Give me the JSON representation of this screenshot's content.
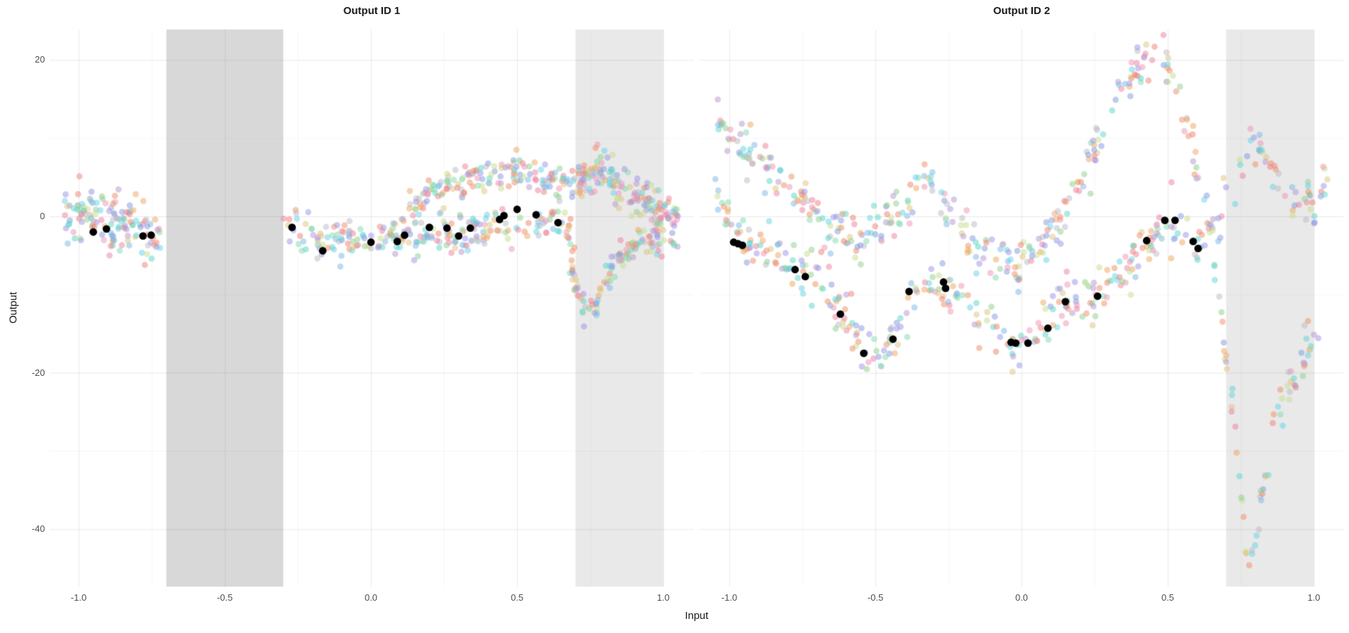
{
  "figure": {
    "xlabel": "Input",
    "ylabel": "Output"
  },
  "chart_data": {
    "type": "scatter",
    "xlabel": "Input",
    "ylabel": "Output",
    "grid": "on",
    "legend": "none",
    "x_ticks": [
      {
        "v": -1.0,
        "label": "-1.0"
      },
      {
        "v": -0.5,
        "label": "-0.5"
      },
      {
        "v": 0.0,
        "label": "0.0"
      },
      {
        "v": 0.5,
        "label": "0.5"
      },
      {
        "v": 1.0,
        "label": "1.0"
      }
    ],
    "x_minor_ticks": [
      -0.75,
      -0.25,
      0.25,
      0.75
    ],
    "y_ticks": [
      {
        "v": 20,
        "label": "20"
      },
      {
        "v": 0,
        "label": "0"
      },
      {
        "v": -20,
        "label": "-20"
      },
      {
        "v": -40,
        "label": "-40"
      }
    ],
    "y_minor_ticks": [
      10,
      -10,
      -30
    ],
    "xlim": [
      -1.1,
      1.1
    ],
    "ylim": [
      -47.3,
      23.9
    ],
    "facets": [
      {
        "title": "Output ID 1",
        "shaded_x_regions": [
          {
            "from": -0.7,
            "to": -0.3,
            "shade": "dark"
          },
          {
            "from": 0.7,
            "to": 1.0,
            "shade": "light"
          }
        ],
        "sample_point_clouds": [
          {
            "name": "left-band",
            "n_points": 130,
            "y_jitter": 2.0,
            "nodes": [
              [
                -1.05,
                1.2
              ],
              [
                -0.95,
                0.3
              ],
              [
                -0.88,
                -0.6
              ],
              [
                -0.8,
                -1.6
              ],
              [
                -0.72,
                -3.2
              ]
            ]
          },
          {
            "name": "mid-lower",
            "n_points": 240,
            "y_jitter": 1.3,
            "nodes": [
              [
                -0.3,
                -0.9
              ],
              [
                -0.22,
                -2.2
              ],
              [
                -0.16,
                -3.6
              ],
              [
                -0.08,
                -3.2
              ],
              [
                0.0,
                -3.1
              ],
              [
                0.08,
                -2.9
              ],
              [
                0.15,
                -2.6
              ],
              [
                0.22,
                -1.9
              ],
              [
                0.3,
                -2.7
              ],
              [
                0.38,
                -2.0
              ],
              [
                0.45,
                -1.3
              ],
              [
                0.52,
                -1.1
              ],
              [
                0.58,
                -0.7
              ],
              [
                0.64,
                -1.4
              ],
              [
                0.7,
                -2.0
              ]
            ]
          },
          {
            "name": "mid-upper",
            "n_points": 150,
            "y_jitter": 1.1,
            "nodes": [
              [
                0.13,
                0.8
              ],
              [
                0.2,
                2.6
              ],
              [
                0.28,
                4.2
              ],
              [
                0.36,
                5.0
              ],
              [
                0.45,
                5.2
              ],
              [
                0.52,
                5.6
              ],
              [
                0.58,
                5.0
              ],
              [
                0.62,
                3.6
              ],
              [
                0.66,
                4.6
              ],
              [
                0.7,
                4.2
              ]
            ]
          },
          {
            "name": "right-arc",
            "n_points": 150,
            "y_jitter": 1.3,
            "nodes": [
              [
                0.7,
                3.8
              ],
              [
                0.74,
                5.4
              ],
              [
                0.78,
                6.3
              ],
              [
                0.82,
                5.0
              ],
              [
                0.86,
                3.4
              ],
              [
                0.9,
                2.6
              ],
              [
                0.95,
                1.6
              ],
              [
                1.0,
                0.4
              ],
              [
                1.05,
                0.8
              ]
            ]
          },
          {
            "name": "right-v",
            "n_points": 110,
            "y_jitter": 1.0,
            "nodes": [
              [
                0.68,
                -5.5
              ],
              [
                0.71,
                -9.5
              ],
              [
                0.74,
                -13.2
              ],
              [
                0.77,
                -11.5
              ],
              [
                0.81,
                -8.0
              ],
              [
                0.85,
                -5.5
              ],
              [
                0.9,
                -3.4
              ],
              [
                0.95,
                -2.6
              ],
              [
                1.0,
                -3.0
              ],
              [
                1.05,
                -2.6
              ]
            ]
          }
        ],
        "observed_points": [
          [
            -0.95,
            -2.0
          ],
          [
            -0.905,
            -1.6
          ],
          [
            -0.78,
            -2.5
          ],
          [
            -0.752,
            -2.4
          ],
          [
            -0.27,
            -1.4
          ],
          [
            -0.165,
            -4.4
          ],
          [
            0.0,
            -3.3
          ],
          [
            0.09,
            -3.2
          ],
          [
            0.115,
            -2.4
          ],
          [
            0.2,
            -1.4
          ],
          [
            0.26,
            -1.5
          ],
          [
            0.3,
            -2.5
          ],
          [
            0.34,
            -1.5
          ],
          [
            0.44,
            -0.4
          ],
          [
            0.455,
            0.1
          ],
          [
            0.5,
            0.9
          ],
          [
            0.565,
            0.2
          ],
          [
            0.64,
            -0.8
          ]
        ]
      },
      {
        "title": "Output ID 2",
        "shaded_x_regions": [
          {
            "from": 0.7,
            "to": 1.0,
            "shade": "light"
          }
        ],
        "sample_point_clouds": [
          {
            "name": "upper-stream",
            "n_points": 400,
            "y_jitter": 1.6,
            "nodes": [
              [
                -1.05,
                12.0
              ],
              [
                -0.97,
                9.5
              ],
              [
                -0.9,
                7.0
              ],
              [
                -0.82,
                4.5
              ],
              [
                -0.75,
                2.0
              ],
              [
                -0.68,
                -0.5
              ],
              [
                -0.6,
                -2.0
              ],
              [
                -0.54,
                -3.0
              ],
              [
                -0.48,
                -1.8
              ],
              [
                -0.42,
                0.8
              ],
              [
                -0.36,
                3.5
              ],
              [
                -0.32,
                4.3
              ],
              [
                -0.27,
                1.5
              ],
              [
                -0.22,
                -1.5
              ],
              [
                -0.17,
                -4.0
              ],
              [
                -0.1,
                -5.3
              ],
              [
                -0.03,
                -5.5
              ],
              [
                0.04,
                -4.6
              ],
              [
                0.1,
                -2.4
              ],
              [
                0.16,
                1.5
              ],
              [
                0.22,
                6.5
              ],
              [
                0.28,
                11.5
              ],
              [
                0.34,
                16.0
              ],
              [
                0.4,
                19.0
              ],
              [
                0.46,
                20.5
              ],
              [
                0.51,
                19.0
              ],
              [
                0.55,
                14.5
              ],
              [
                0.58,
                9.5
              ],
              [
                0.61,
                4.0
              ],
              [
                0.64,
                -2.0
              ],
              [
                0.67,
                -9.0
              ],
              [
                0.7,
                -17.0
              ],
              [
                0.73,
                -27.0
              ],
              [
                0.76,
                -38.0
              ],
              [
                0.78,
                -43.5
              ],
              [
                0.81,
                -39.0
              ],
              [
                0.84,
                -33.0
              ],
              [
                0.87,
                -26.5
              ],
              [
                0.9,
                -23.0
              ],
              [
                0.94,
                -20.0
              ],
              [
                0.98,
                -17.0
              ],
              [
                1.02,
                -15.5
              ]
            ]
          },
          {
            "name": "lower-stream",
            "n_points": 380,
            "y_jitter": 1.6,
            "nodes": [
              [
                -1.05,
                3.0
              ],
              [
                -1.0,
                0.0
              ],
              [
                -0.96,
                -2.8
              ],
              [
                -0.9,
                -4.0
              ],
              [
                -0.84,
                -5.2
              ],
              [
                -0.78,
                -6.6
              ],
              [
                -0.72,
                -8.0
              ],
              [
                -0.66,
                -10.5
              ],
              [
                -0.6,
                -13.0
              ],
              [
                -0.55,
                -16.0
              ],
              [
                -0.5,
                -18.0
              ],
              [
                -0.46,
                -16.5
              ],
              [
                -0.42,
                -14.0
              ],
              [
                -0.38,
                -10.5
              ],
              [
                -0.33,
                -8.8
              ],
              [
                -0.28,
                -8.6
              ],
              [
                -0.23,
                -9.5
              ],
              [
                -0.17,
                -11.5
              ],
              [
                -0.1,
                -14.0
              ],
              [
                -0.04,
                -16.0
              ],
              [
                0.02,
                -16.2
              ],
              [
                0.08,
                -14.6
              ],
              [
                0.14,
                -11.5
              ],
              [
                0.2,
                -10.8
              ],
              [
                0.26,
                -10.2
              ],
              [
                0.32,
                -8.2
              ],
              [
                0.38,
                -5.6
              ],
              [
                0.44,
                -2.8
              ],
              [
                0.49,
                -0.8
              ],
              [
                0.53,
                -0.8
              ],
              [
                0.58,
                -3.2
              ],
              [
                0.62,
                -3.6
              ],
              [
                0.66,
                -1.0
              ],
              [
                0.7,
                2.5
              ],
              [
                0.74,
                6.5
              ],
              [
                0.78,
                9.5
              ],
              [
                0.82,
                8.5
              ],
              [
                0.86,
                5.5
              ],
              [
                0.9,
                3.0
              ],
              [
                0.94,
                1.0
              ],
              [
                0.98,
                1.5
              ],
              [
                1.02,
                3.5
              ],
              [
                1.05,
                5.0
              ]
            ]
          }
        ],
        "observed_points": [
          [
            -0.985,
            -3.3
          ],
          [
            -0.97,
            -3.5
          ],
          [
            -0.955,
            -3.7
          ],
          [
            -0.775,
            -6.8
          ],
          [
            -0.74,
            -7.7
          ],
          [
            -0.62,
            -12.5
          ],
          [
            -0.54,
            -17.5
          ],
          [
            -0.44,
            -15.7
          ],
          [
            -0.385,
            -9.6
          ],
          [
            -0.267,
            -8.4
          ],
          [
            -0.26,
            -9.2
          ],
          [
            -0.036,
            -16.1
          ],
          [
            -0.02,
            -16.2
          ],
          [
            0.022,
            -16.2
          ],
          [
            0.09,
            -14.3
          ],
          [
            0.15,
            -10.9
          ],
          [
            0.26,
            -10.2
          ],
          [
            0.428,
            -3.1
          ],
          [
            0.49,
            -0.5
          ],
          [
            0.525,
            -0.5
          ],
          [
            0.587,
            -3.2
          ],
          [
            0.604,
            -4.1
          ]
        ]
      }
    ],
    "style": {
      "background": "#ffffff",
      "band_dark": "#d8d8d8",
      "band_light": "#e9e9e9",
      "grid_major_alpha": 0.105,
      "grid_minor_alpha": 0.045,
      "point_radius": 4.4,
      "point_alpha": 0.5,
      "observed_color": "#000000",
      "observed_radius": 5.4,
      "seed": 42,
      "palette": [
        "#f07f72",
        "#ef8e63",
        "#f2a35e",
        "#e0c27e",
        "#c6e08a",
        "#8ed08b",
        "#7fdcad",
        "#59d6c8",
        "#63d4e6",
        "#7ab8e8",
        "#8298e0",
        "#9b94e8",
        "#b595cf",
        "#ef93b6",
        "#ee7f9d",
        "#b9b9c5"
      ]
    }
  }
}
